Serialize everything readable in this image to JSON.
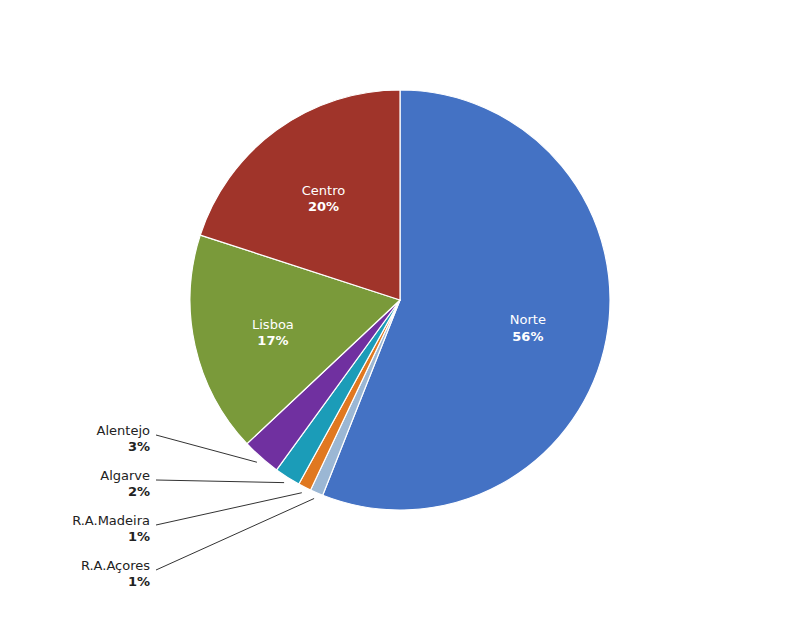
{
  "chart_data": {
    "type": "pie",
    "categories": [
      "Norte",
      "R.A.Açores",
      "R.A.Madeira",
      "Algarve",
      "Alentejo",
      "Lisboa",
      "Centro"
    ],
    "values": [
      56,
      1,
      1,
      2,
      3,
      17,
      20
    ],
    "value_labels": [
      "56%",
      "1%",
      "1%",
      "2%",
      "3%",
      "17%",
      "20%"
    ],
    "colors": [
      "#4472C4",
      "#9BB7D4",
      "#E07820",
      "#1B9CB8",
      "#7030A0",
      "#7A9A3A",
      "#A0342A"
    ],
    "data_labels": true
  }
}
